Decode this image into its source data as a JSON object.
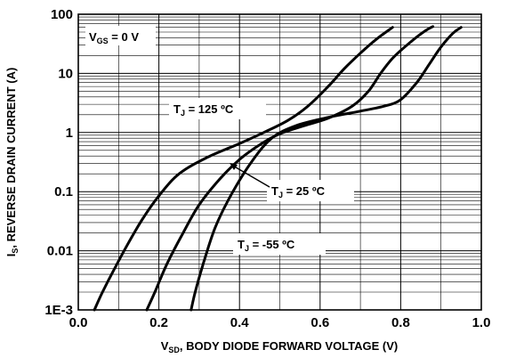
{
  "chart_data": {
    "type": "line",
    "title": "",
    "xlabel": {
      "main": "V",
      "sub": "SD",
      "rest": ", BODY DIODE FORWARD VOLTAGE (V)"
    },
    "ylabel": {
      "main": "I",
      "sub": "S",
      "rest": ", REVERSE DRAIN CURRENT (A)"
    },
    "xlim": [
      0.0,
      1.0
    ],
    "ylim": [
      0.001,
      100
    ],
    "yscale": "log",
    "grid": true,
    "x_ticks": [
      "0.0",
      "0.2",
      "0.4",
      "0.6",
      "0.8",
      "1.0"
    ],
    "y_ticks": [
      "1E-3",
      "0.01",
      "0.1",
      "1",
      "10",
      "100"
    ],
    "condition": {
      "main": "V",
      "sub": "GS",
      "rest": " = 0 V"
    },
    "series": [
      {
        "name": "T_J = 125 °C",
        "label": {
          "main": "T",
          "sub": "J",
          "rest": " = 125 ºC"
        },
        "x": [
          0.04,
          0.06,
          0.09,
          0.12,
          0.16,
          0.2,
          0.25,
          0.32,
          0.4,
          0.46,
          0.52,
          0.57,
          0.62,
          0.66,
          0.7,
          0.74,
          0.78
        ],
        "y": [
          0.001,
          0.002,
          0.005,
          0.012,
          0.035,
          0.085,
          0.2,
          0.38,
          0.65,
          1.0,
          1.6,
          2.8,
          6.0,
          12,
          22,
          38,
          60
        ]
      },
      {
        "name": "T_J = 25 °C",
        "label": {
          "main": "T",
          "sub": "J",
          "rest": " = 25 ºC"
        },
        "x": [
          0.17,
          0.19,
          0.22,
          0.26,
          0.3,
          0.35,
          0.4,
          0.45,
          0.5,
          0.56,
          0.62,
          0.68,
          0.72,
          0.75,
          0.78,
          0.82,
          0.86,
          0.88
        ],
        "y": [
          0.001,
          0.002,
          0.006,
          0.02,
          0.06,
          0.16,
          0.35,
          0.62,
          0.95,
          1.3,
          1.75,
          2.8,
          5.0,
          10,
          18,
          32,
          52,
          62
        ]
      },
      {
        "name": "T_J = -55 °C",
        "label": {
          "main": "T",
          "sub": "J",
          "rest": " = -55 ºC"
        },
        "x": [
          0.28,
          0.29,
          0.31,
          0.34,
          0.38,
          0.43,
          0.48,
          0.54,
          0.62,
          0.7,
          0.76,
          0.8,
          0.84,
          0.87,
          0.9,
          0.93,
          0.95
        ],
        "y": [
          0.001,
          0.002,
          0.006,
          0.025,
          0.09,
          0.32,
          0.8,
          1.3,
          1.8,
          2.3,
          2.8,
          3.6,
          7.0,
          14,
          28,
          48,
          60
        ]
      }
    ]
  }
}
